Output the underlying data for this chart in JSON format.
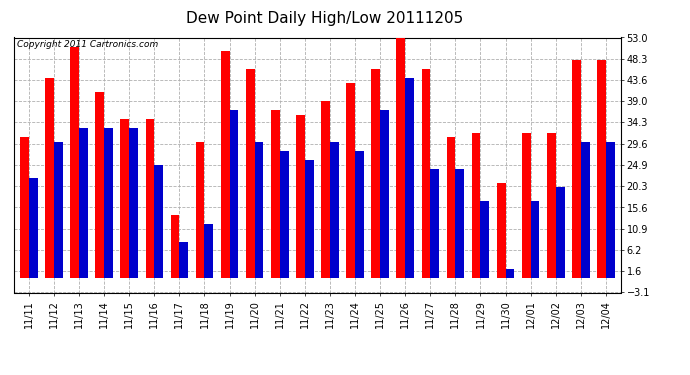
{
  "title": "Dew Point Daily High/Low 20111205",
  "copyright": "Copyright 2011 Cartronics.com",
  "categories": [
    "11/11",
    "11/12",
    "11/13",
    "11/14",
    "11/15",
    "11/16",
    "11/17",
    "11/18",
    "11/19",
    "11/20",
    "11/21",
    "11/22",
    "11/23",
    "11/24",
    "11/25",
    "11/26",
    "11/27",
    "11/28",
    "11/29",
    "11/30",
    "12/01",
    "12/02",
    "12/03",
    "12/04"
  ],
  "highs": [
    31,
    44,
    51,
    41,
    35,
    35,
    14,
    30,
    50,
    46,
    37,
    36,
    39,
    43,
    46,
    54,
    46,
    31,
    32,
    21,
    32,
    32,
    48,
    48
  ],
  "lows": [
    22,
    30,
    33,
    33,
    33,
    25,
    8,
    12,
    37,
    30,
    28,
    26,
    30,
    28,
    37,
    44,
    24,
    24,
    17,
    2,
    17,
    20,
    30,
    30
  ],
  "high_color": "#ff0000",
  "low_color": "#0000cc",
  "background_color": "#ffffff",
  "grid_color": "#b0b0b0",
  "ylim": [
    -3.1,
    53.0
  ],
  "yticks": [
    -3.1,
    1.6,
    6.2,
    10.9,
    15.6,
    20.3,
    24.9,
    29.6,
    34.3,
    39.0,
    43.6,
    48.3,
    53.0
  ],
  "title_fontsize": 11,
  "copyright_fontsize": 6.5,
  "tick_fontsize": 7
}
